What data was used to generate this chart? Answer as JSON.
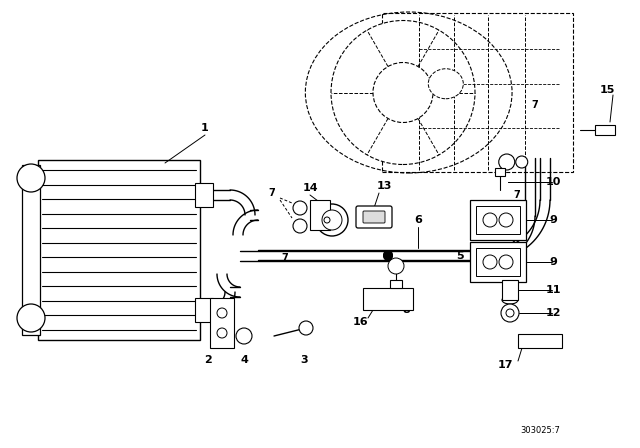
{
  "background_color": "#ffffff",
  "line_color": "#000000",
  "diagram_code": "303025:7",
  "figsize": [
    6.4,
    4.48
  ],
  "dpi": 100,
  "xlim": [
    0,
    640
  ],
  "ylim": [
    0,
    448
  ]
}
